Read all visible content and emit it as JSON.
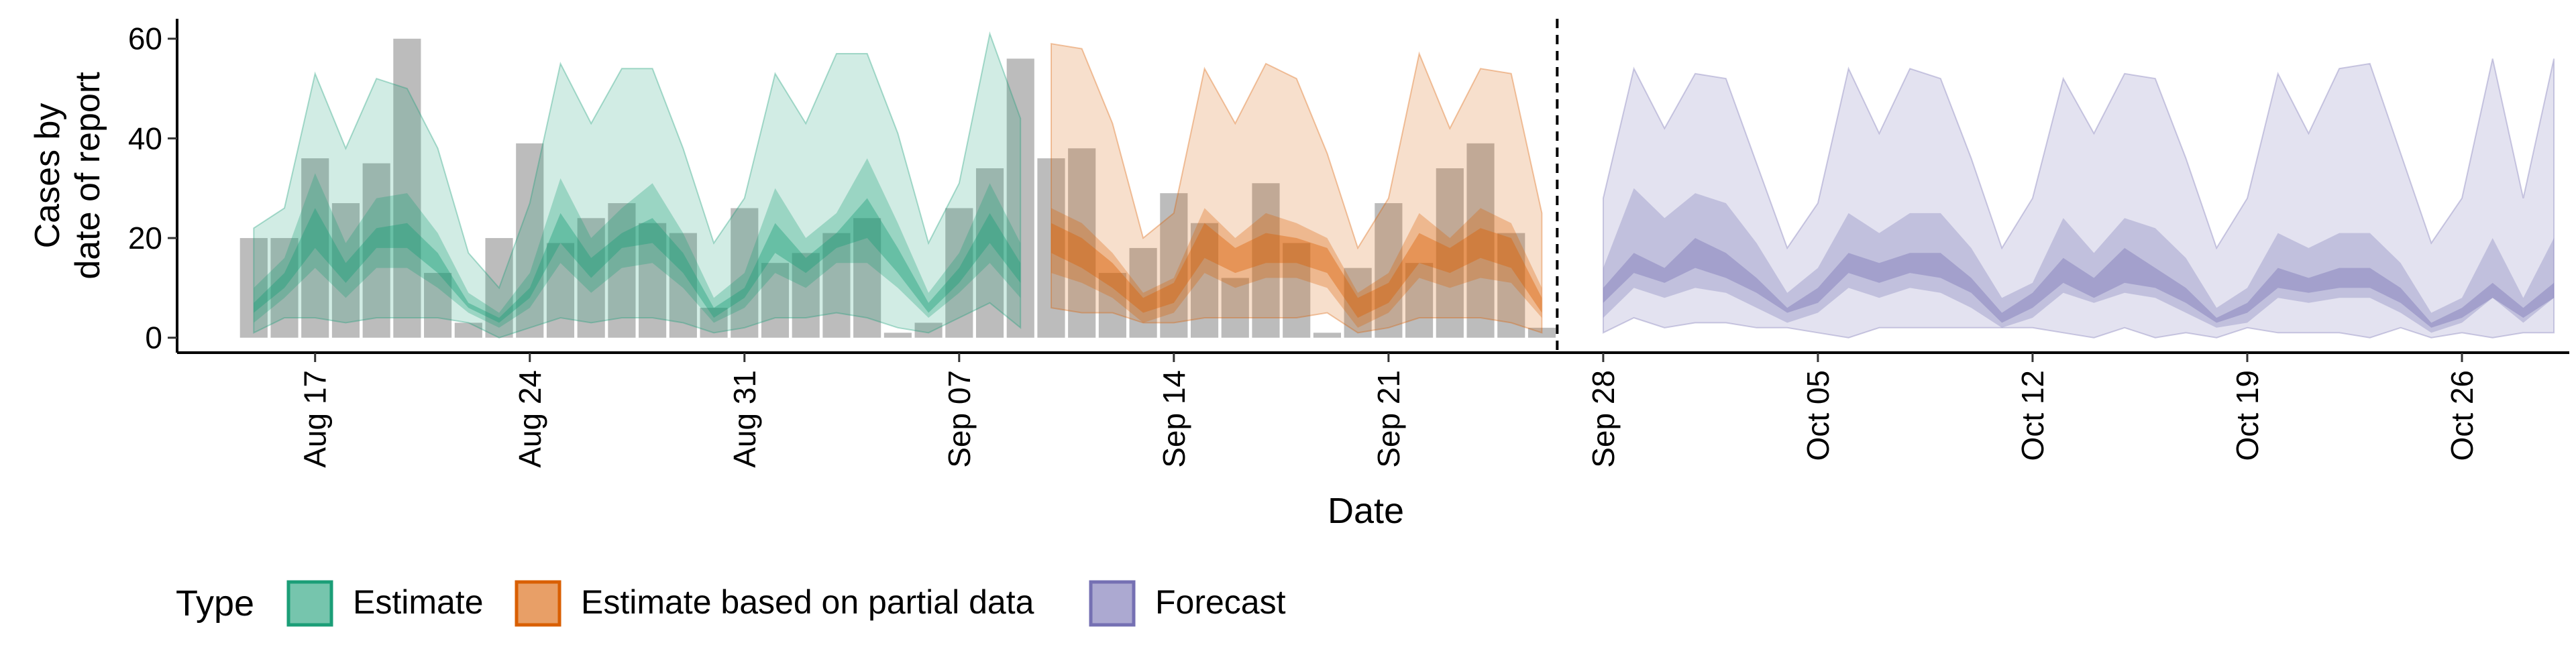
{
  "chart_data": {
    "type": "area",
    "title": "",
    "xlabel": "Date",
    "ylabel_lines": [
      "Cases by",
      "date of report"
    ],
    "ylim": [
      -3,
      64
    ],
    "yticks": [
      0,
      20,
      40,
      60
    ],
    "start_date": "2020-08-15",
    "end_date": "2020-10-26",
    "xlim_days": [
      -2.5,
      75.5
    ],
    "forecast_date_index": 43,
    "x_ticks": [
      {
        "day": 2,
        "label": "Aug 17"
      },
      {
        "day": 9,
        "label": "Aug 24"
      },
      {
        "day": 16,
        "label": "Aug 31"
      },
      {
        "day": 23,
        "label": "Sep 07"
      },
      {
        "day": 30,
        "label": "Sep 14"
      },
      {
        "day": 37,
        "label": "Sep 21"
      },
      {
        "day": 44,
        "label": "Sep 28"
      },
      {
        "day": 51,
        "label": "Oct 05"
      },
      {
        "day": 58,
        "label": "Oct 12"
      },
      {
        "day": 65,
        "label": "Oct 19"
      },
      {
        "day": 72,
        "label": "Oct 26"
      }
    ],
    "reported_cases": [
      20,
      20,
      36,
      27,
      35,
      60,
      13,
      3,
      20,
      39,
      19,
      24,
      27,
      23,
      21,
      6,
      26,
      15,
      17,
      21,
      24,
      1,
      3,
      26,
      34,
      56,
      36,
      38,
      13,
      18,
      29,
      23,
      12,
      31,
      19,
      1,
      14,
      27,
      15,
      34,
      39,
      21,
      2
    ],
    "legend": {
      "title": "Type",
      "entries": [
        {
          "label": "Estimate",
          "color": "#1b9e77"
        },
        {
          "label": "Estimate based on partial data",
          "color": "#d95f02"
        },
        {
          "label": "Forecast",
          "color": "#7570b3"
        }
      ]
    },
    "series": [
      {
        "name": "Estimate",
        "color": "#1b9e77",
        "start_day": 0,
        "outer_lo": [
          1,
          4,
          4,
          3,
          4,
          4,
          4,
          3,
          0,
          2,
          4,
          3,
          4,
          4,
          3,
          1,
          2,
          4,
          4,
          5,
          4,
          2,
          1,
          4,
          7,
          2
        ],
        "outer_hi": [
          22,
          26,
          53,
          38,
          52,
          50,
          38,
          17,
          10,
          27,
          55,
          43,
          54,
          54,
          38,
          19,
          28,
          53,
          43,
          57,
          57,
          41,
          19,
          31,
          61,
          44
        ],
        "mid_lo": [
          3,
          8,
          14,
          8,
          14,
          14,
          10,
          5,
          2,
          6,
          15,
          9,
          14,
          15,
          10,
          3,
          6,
          13,
          10,
          15,
          15,
          10,
          4,
          9,
          15,
          8
        ],
        "mid_hi": [
          10,
          16,
          33,
          19,
          28,
          29,
          21,
          9,
          5,
          13,
          32,
          20,
          26,
          31,
          21,
          8,
          13,
          30,
          20,
          25,
          36,
          23,
          9,
          17,
          31,
          19
        ],
        "in_lo": [
          5,
          10,
          18,
          11,
          18,
          18,
          13,
          6,
          3,
          8,
          19,
          12,
          18,
          19,
          13,
          4,
          8,
          17,
          13,
          18,
          20,
          13,
          5,
          11,
          19,
          11
        ],
        "in_hi": [
          7,
          13,
          26,
          15,
          22,
          23,
          17,
          7,
          4,
          10,
          25,
          16,
          21,
          24,
          17,
          6,
          10,
          23,
          16,
          21,
          28,
          18,
          7,
          14,
          25,
          15
        ]
      },
      {
        "name": "Estimate based on partial data",
        "color": "#d95f02",
        "start_day": 26,
        "outer_lo": [
          6,
          5,
          5,
          3,
          3,
          4,
          4,
          4,
          4,
          5,
          1,
          2,
          4,
          4,
          4,
          3,
          1
        ],
        "outer_hi": [
          59,
          58,
          43,
          20,
          25,
          54,
          43,
          55,
          52,
          37,
          18,
          28,
          57,
          42,
          54,
          53,
          25
        ],
        "mid_lo": [
          13,
          11,
          8,
          3,
          5,
          13,
          10,
          12,
          12,
          10,
          2,
          5,
          12,
          10,
          12,
          11,
          4
        ],
        "mid_hi": [
          26,
          23,
          17,
          9,
          12,
          26,
          20,
          25,
          23,
          20,
          9,
          13,
          25,
          20,
          26,
          23,
          10
        ],
        "in_lo": [
          17,
          14,
          10,
          5,
          7,
          16,
          13,
          15,
          15,
          13,
          4,
          7,
          15,
          13,
          16,
          14,
          5
        ],
        "in_hi": [
          23,
          20,
          15,
          8,
          11,
          23,
          18,
          21,
          20,
          18,
          8,
          11,
          21,
          18,
          22,
          20,
          8
        ]
      },
      {
        "name": "Forecast",
        "color": "#7570b3",
        "start_day": 44,
        "outer_lo": [
          1,
          4,
          2,
          3,
          3,
          2,
          2,
          1,
          0,
          2,
          2,
          2,
          2,
          2,
          2,
          1,
          0,
          2,
          0,
          1,
          0,
          2,
          1,
          1,
          1,
          0,
          2,
          0,
          1,
          0,
          1,
          1
        ],
        "outer_hi": [
          28,
          54,
          42,
          53,
          52,
          35,
          18,
          27,
          54,
          41,
          54,
          52,
          36,
          18,
          28,
          52,
          41,
          53,
          52,
          36,
          18,
          28,
          53,
          41,
          54,
          55,
          37,
          19,
          28,
          56,
          28,
          56
        ],
        "mid_lo": [
          4,
          10,
          8,
          10,
          9,
          6,
          3,
          5,
          10,
          8,
          10,
          9,
          6,
          2,
          4,
          9,
          7,
          9,
          8,
          5,
          2,
          3,
          8,
          7,
          8,
          8,
          5,
          1,
          3,
          8,
          3,
          8
        ],
        "mid_hi": [
          14,
          30,
          24,
          29,
          27,
          19,
          9,
          14,
          25,
          21,
          25,
          25,
          18,
          8,
          11,
          24,
          17,
          24,
          22,
          16,
          6,
          10,
          21,
          18,
          21,
          21,
          15,
          5,
          8,
          20,
          8,
          20
        ],
        "in_lo": [
          7,
          13,
          11,
          14,
          12,
          9,
          5,
          7,
          13,
          11,
          13,
          12,
          9,
          3,
          6,
          11,
          8,
          11,
          10,
          7,
          3,
          5,
          10,
          9,
          10,
          10,
          7,
          2,
          4,
          8,
          4,
          8
        ],
        "in_hi": [
          10,
          17,
          14,
          20,
          17,
          12,
          6,
          10,
          17,
          15,
          17,
          17,
          12,
          5,
          9,
          16,
          12,
          18,
          14,
          10,
          4,
          7,
          14,
          12,
          14,
          14,
          10,
          3,
          6,
          11,
          6,
          11
        ]
      }
    ]
  }
}
